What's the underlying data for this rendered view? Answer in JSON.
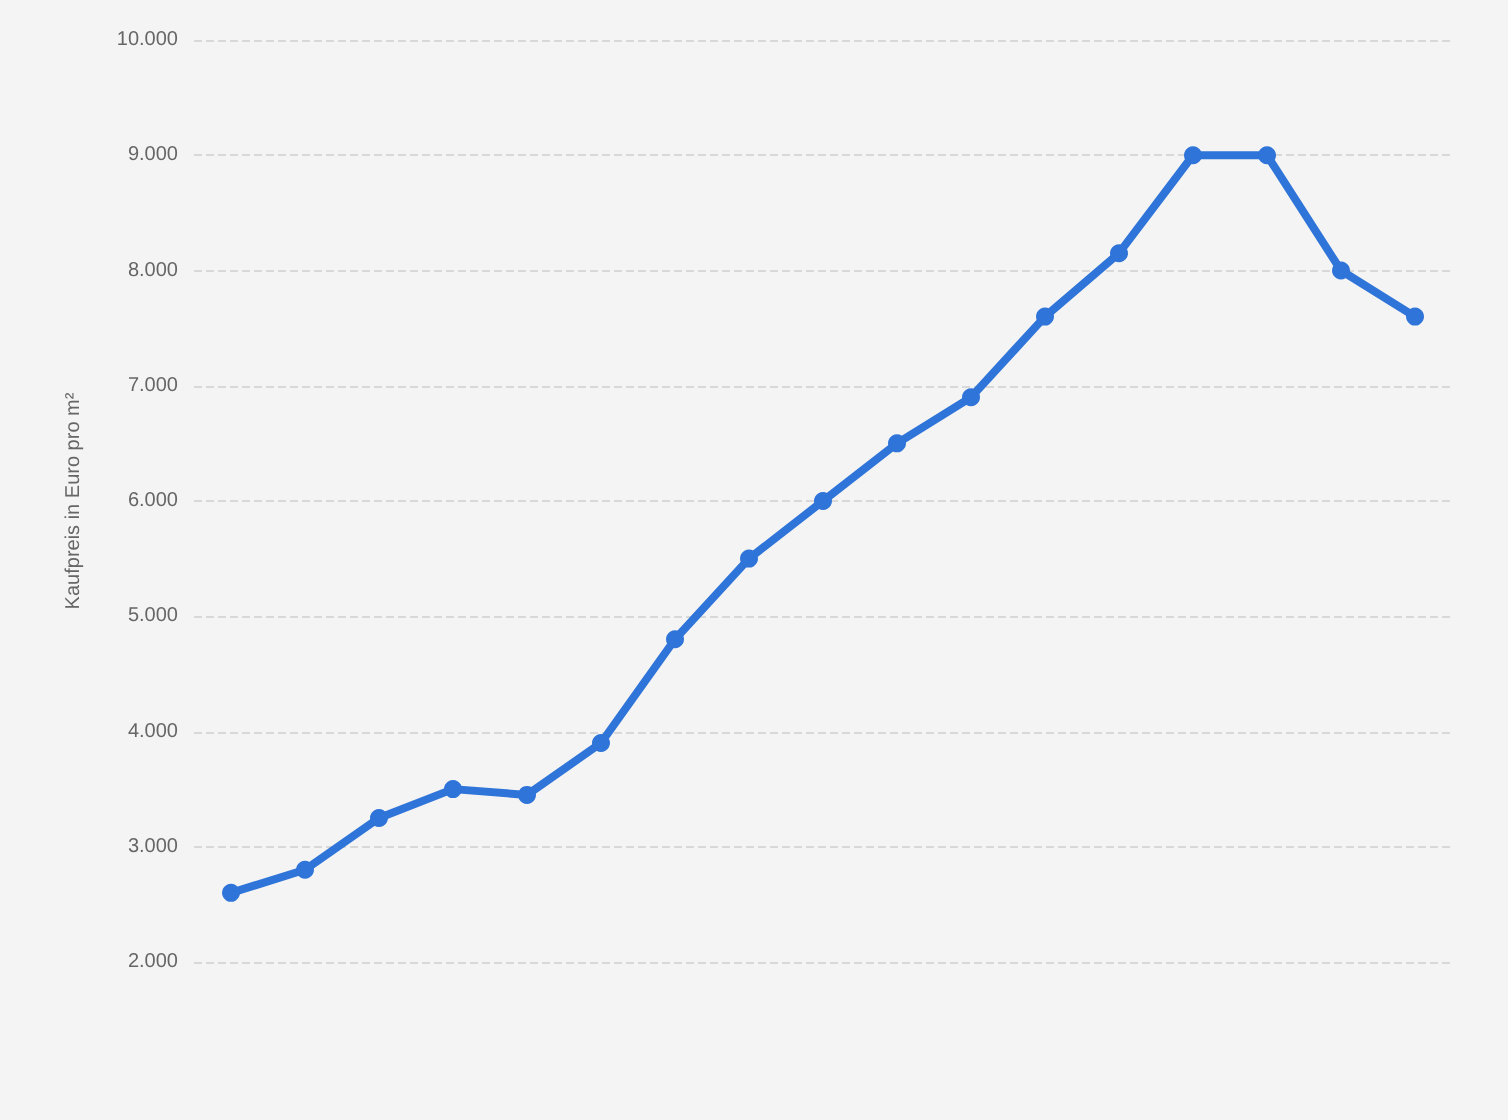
{
  "chart_data": {
    "type": "line",
    "ylabel": "Kaufpreis in Euro pro m²",
    "categories": [
      null,
      null,
      null,
      null,
      null,
      null,
      null,
      null,
      null,
      null,
      null,
      null,
      null,
      null,
      null,
      null,
      null
    ],
    "series": [
      {
        "color": "#2f74d8",
        "values": [
          2600,
          2800,
          3250,
          3500,
          3450,
          3900,
          4800,
          5500,
          6000,
          6500,
          6900,
          7600,
          8150,
          9000,
          9000,
          8000,
          7600
        ]
      }
    ],
    "ylim": [
      2000,
      10000
    ],
    "yticks": [
      {
        "value": 2000,
        "label": "2.000"
      },
      {
        "value": 3000,
        "label": "3.000"
      },
      {
        "value": 4000,
        "label": "4.000"
      },
      {
        "value": 5000,
        "label": "5.000"
      },
      {
        "value": 6000,
        "label": "6.000"
      },
      {
        "value": 7000,
        "label": "7.000"
      },
      {
        "value": 8000,
        "label": "8.000"
      },
      {
        "value": 9000,
        "label": "9.000"
      },
      {
        "value": 10000,
        "label": "10.000"
      }
    ],
    "grid": "y",
    "marker": "circle",
    "line_style": "solid",
    "tick_labels": "y"
  }
}
